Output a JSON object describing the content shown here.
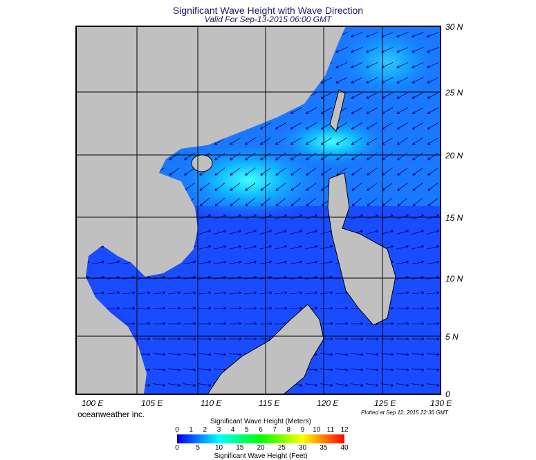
{
  "title": "Significant Wave Height with Wave Direction",
  "subtitle": "Valid For Sep-13-2015 06:00 GMT",
  "lat_labels": [
    "30 N",
    "25 N",
    "20 N",
    "15 N",
    "10 N",
    "5 N",
    "0"
  ],
  "lon_labels": [
    "100 E",
    "105 E",
    "110 E",
    "115 E",
    "120 E",
    "125 E",
    "130 E"
  ],
  "brand": "oceanweather inc.",
  "plotted": "Plotted at Sep 12, 2015 22:36 GMT",
  "legend": {
    "meters_title": "Significant Wave Height (Meters)",
    "meters_ticks": [
      "0",
      "1",
      "2",
      "3",
      "4",
      "5",
      "6",
      "7",
      "8",
      "9",
      "10",
      "11",
      "12"
    ],
    "feet_title": "Significant Wave Height (Feet)",
    "feet_ticks": [
      "0",
      "5",
      "10",
      "15",
      "20",
      "25",
      "30",
      "35",
      "40"
    ]
  },
  "colors": {
    "land": "#c0c0c0",
    "ocean": "#1a4cff",
    "arrow": "#000066",
    "grid": "#000000"
  }
}
